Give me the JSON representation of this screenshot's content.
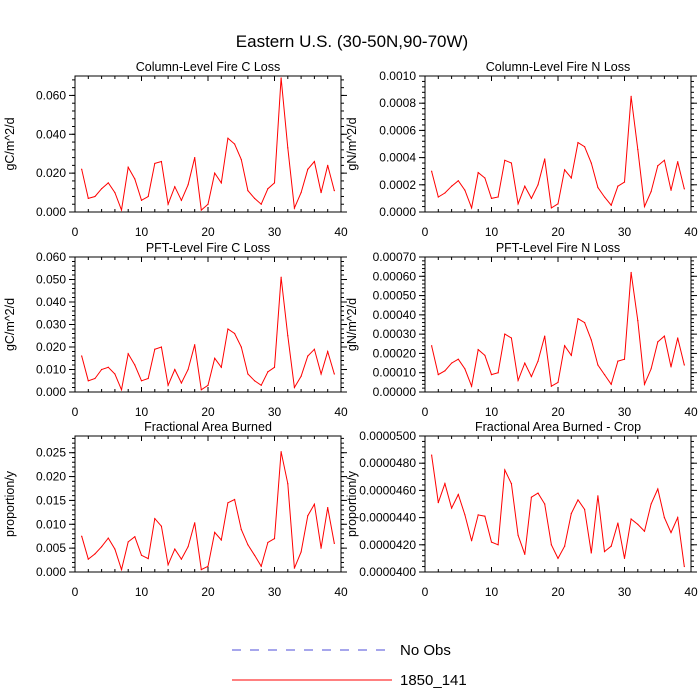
{
  "title": "Eastern U.S. (30-50N,90-70W)",
  "legend": [
    {
      "label": "No Obs",
      "color": "#4d4dd9",
      "style": "dashed"
    },
    {
      "label": "1850_141",
      "color": "#ff0000",
      "style": "solid"
    }
  ],
  "chart_data": [
    {
      "type": "line",
      "title": "Column-Level Fire C Loss",
      "xlabel": "",
      "ylabel": "gC/m^2/d",
      "xlim": [
        0,
        40
      ],
      "ylim": [
        0,
        0.07
      ],
      "xticks": [
        "0",
        "10",
        "20",
        "30",
        "40"
      ],
      "yticks": [
        {
          "value": 0,
          "label": "0.000"
        },
        {
          "value": 0.02,
          "label": "0.020"
        },
        {
          "value": 0.04,
          "label": "0.040"
        },
        {
          "value": 0.06,
          "label": "0.060"
        }
      ],
      "series": [
        {
          "name": "1850_141",
          "color": "#ff0000",
          "x": [
            1,
            2,
            3,
            4,
            5,
            6,
            7,
            8,
            9,
            10,
            11,
            12,
            13,
            14,
            15,
            16,
            17,
            18,
            19,
            20,
            21,
            22,
            23,
            24,
            25,
            26,
            27,
            28,
            29,
            30,
            31,
            32,
            33,
            34,
            35,
            36,
            37,
            38,
            39
          ],
          "values": [
            0.022,
            0.007,
            0.008,
            0.012,
            0.015,
            0.01,
            0.001,
            0.023,
            0.017,
            0.006,
            0.008,
            0.025,
            0.026,
            0.004,
            0.013,
            0.006,
            0.014,
            0.028,
            0.001,
            0.004,
            0.02,
            0.015,
            0.038,
            0.035,
            0.027,
            0.011,
            0.007,
            0.004,
            0.012,
            0.015,
            0.069,
            0.033,
            0.002,
            0.01,
            0.022,
            0.026,
            0.01,
            0.024,
            0.011
          ]
        }
      ]
    },
    {
      "type": "line",
      "title": "Column-Level Fire N Loss",
      "xlabel": "",
      "ylabel": "gN/m^2/d",
      "xlim": [
        0,
        40
      ],
      "ylim": [
        0,
        0.001
      ],
      "xticks": [
        "0",
        "10",
        "20",
        "30",
        "40"
      ],
      "yticks": [
        {
          "value": 0,
          "label": "0.0000"
        },
        {
          "value": 0.0002,
          "label": "0.0002"
        },
        {
          "value": 0.0004,
          "label": "0.0004"
        },
        {
          "value": 0.0006,
          "label": "0.0006"
        },
        {
          "value": 0.0008,
          "label": "0.0008"
        },
        {
          "value": 0.001,
          "label": "0.0010"
        }
      ],
      "series": [
        {
          "name": "1850_141",
          "color": "#ff0000",
          "x": [
            1,
            2,
            3,
            4,
            5,
            6,
            7,
            8,
            9,
            10,
            11,
            12,
            13,
            14,
            15,
            16,
            17,
            18,
            19,
            20,
            21,
            22,
            23,
            24,
            25,
            26,
            27,
            28,
            29,
            30,
            31,
            32,
            33,
            34,
            35,
            36,
            37,
            38,
            39
          ],
          "values": [
            0.0003,
            0.00011,
            0.00014,
            0.00019,
            0.00023,
            0.00016,
            3e-05,
            0.00029,
            0.00025,
            0.0001,
            0.00011,
            0.00038,
            0.00036,
            6e-05,
            0.00019,
            0.0001,
            0.0002,
            0.00039,
            3e-05,
            6e-05,
            0.00031,
            0.00025,
            0.00051,
            0.00048,
            0.00036,
            0.00018,
            0.00011,
            5e-05,
            0.00019,
            0.00022,
            0.00085,
            0.00046,
            4e-05,
            0.00015,
            0.00034,
            0.00038,
            0.00016,
            0.00037,
            0.00017
          ]
        }
      ]
    },
    {
      "type": "line",
      "title": "PFT-Level Fire C Loss",
      "xlabel": "",
      "ylabel": "gC/m^2/d",
      "xlim": [
        0,
        40
      ],
      "ylim": [
        0,
        0.06
      ],
      "xticks": [
        "0",
        "10",
        "20",
        "30",
        "40"
      ],
      "yticks": [
        {
          "value": 0,
          "label": "0.000"
        },
        {
          "value": 0.01,
          "label": "0.010"
        },
        {
          "value": 0.02,
          "label": "0.020"
        },
        {
          "value": 0.03,
          "label": "0.030"
        },
        {
          "value": 0.04,
          "label": "0.040"
        },
        {
          "value": 0.05,
          "label": "0.050"
        },
        {
          "value": 0.06,
          "label": "0.060"
        }
      ],
      "series": [
        {
          "name": "1850_141",
          "color": "#ff0000",
          "x": [
            1,
            2,
            3,
            4,
            5,
            6,
            7,
            8,
            9,
            10,
            11,
            12,
            13,
            14,
            15,
            16,
            17,
            18,
            19,
            20,
            21,
            22,
            23,
            24,
            25,
            26,
            27,
            28,
            29,
            30,
            31,
            32,
            33,
            34,
            35,
            36,
            37,
            38,
            39
          ],
          "values": [
            0.016,
            0.005,
            0.006,
            0.01,
            0.011,
            0.008,
            0.001,
            0.017,
            0.012,
            0.005,
            0.006,
            0.019,
            0.02,
            0.003,
            0.01,
            0.004,
            0.01,
            0.021,
            0.001,
            0.003,
            0.015,
            0.011,
            0.028,
            0.026,
            0.02,
            0.008,
            0.005,
            0.003,
            0.009,
            0.011,
            0.051,
            0.025,
            0.002,
            0.007,
            0.016,
            0.019,
            0.008,
            0.018,
            0.008
          ]
        }
      ]
    },
    {
      "type": "line",
      "title": "PFT-Level Fire N Loss",
      "xlabel": "",
      "ylabel": "gN/m^2/d",
      "xlim": [
        0,
        40
      ],
      "ylim": [
        0,
        0.0007
      ],
      "xticks": [
        "0",
        "10",
        "20",
        "30",
        "40"
      ],
      "yticks": [
        {
          "value": 0,
          "label": "0.00000"
        },
        {
          "value": 0.0001,
          "label": "0.00010"
        },
        {
          "value": 0.0002,
          "label": "0.00020"
        },
        {
          "value": 0.0003,
          "label": "0.00030"
        },
        {
          "value": 0.0004,
          "label": "0.00040"
        },
        {
          "value": 0.0005,
          "label": "0.00050"
        },
        {
          "value": 0.0006,
          "label": "0.00060"
        },
        {
          "value": 0.0007,
          "label": "0.00070"
        }
      ],
      "series": [
        {
          "name": "1850_141",
          "color": "#ff0000",
          "x": [
            1,
            2,
            3,
            4,
            5,
            6,
            7,
            8,
            9,
            10,
            11,
            12,
            13,
            14,
            15,
            16,
            17,
            18,
            19,
            20,
            21,
            22,
            23,
            24,
            25,
            26,
            27,
            28,
            29,
            30,
            31,
            32,
            33,
            34,
            35,
            36,
            37,
            38,
            39
          ],
          "values": [
            0.00024,
            9e-05,
            0.00011,
            0.00015,
            0.00017,
            0.00012,
            3e-05,
            0.00022,
            0.00019,
            9e-05,
            0.0001,
            0.0003,
            0.00028,
            6e-05,
            0.00015,
            8e-05,
            0.00016,
            0.00029,
            3e-05,
            5e-05,
            0.00024,
            0.00019,
            0.00038,
            0.00036,
            0.00027,
            0.00014,
            9e-05,
            4e-05,
            0.00016,
            0.00017,
            0.00062,
            0.00037,
            4e-05,
            0.00012,
            0.00026,
            0.00029,
            0.00013,
            0.00028,
            0.00014
          ]
        }
      ]
    },
    {
      "type": "line",
      "title": "Fractional Area Burned",
      "xlabel": "",
      "ylabel": "proportion/y",
      "xlim": [
        0,
        40
      ],
      "ylim": [
        0,
        0.0285
      ],
      "xticks": [
        "0",
        "10",
        "20",
        "30",
        "40"
      ],
      "yticks": [
        {
          "value": 0,
          "label": "0.000"
        },
        {
          "value": 0.005,
          "label": "0.005"
        },
        {
          "value": 0.01,
          "label": "0.010"
        },
        {
          "value": 0.015,
          "label": "0.015"
        },
        {
          "value": 0.02,
          "label": "0.020"
        },
        {
          "value": 0.025,
          "label": "0.025"
        }
      ],
      "series": [
        {
          "name": "1850_141",
          "color": "#ff0000",
          "x": [
            1,
            2,
            3,
            4,
            5,
            6,
            7,
            8,
            9,
            10,
            11,
            12,
            13,
            14,
            15,
            16,
            17,
            18,
            19,
            20,
            21,
            22,
            23,
            24,
            25,
            26,
            27,
            28,
            29,
            30,
            31,
            32,
            33,
            34,
            35,
            36,
            37,
            38,
            39
          ],
          "values": [
            0.0075,
            0.0027,
            0.0038,
            0.0053,
            0.0071,
            0.0048,
            0.0005,
            0.0063,
            0.0074,
            0.0035,
            0.0028,
            0.0112,
            0.0096,
            0.0015,
            0.0048,
            0.0027,
            0.0053,
            0.0103,
            0.0005,
            0.0012,
            0.0083,
            0.0067,
            0.0145,
            0.0152,
            0.0089,
            0.0057,
            0.0035,
            0.0012,
            0.0062,
            0.007,
            0.0252,
            0.0185,
            0.0008,
            0.0042,
            0.0118,
            0.0142,
            0.005,
            0.0135,
            0.006
          ]
        }
      ]
    },
    {
      "type": "line",
      "title": "Fractional Area Burned - Crop",
      "xlabel": "",
      "ylabel": "proportion/y",
      "xlim": [
        0,
        40
      ],
      "ylim": [
        4e-05,
        5e-05
      ],
      "xticks": [
        "0",
        "10",
        "20",
        "30",
        "40"
      ],
      "yticks": [
        {
          "value": 4e-05,
          "label": "0.0000400"
        },
        {
          "value": 4.2e-05,
          "label": "0.0000420"
        },
        {
          "value": 4.4e-05,
          "label": "0.0000440"
        },
        {
          "value": 4.6e-05,
          "label": "0.0000460"
        },
        {
          "value": 4.8e-05,
          "label": "0.0000480"
        },
        {
          "value": 5e-05,
          "label": "0.0000500"
        }
      ],
      "series": [
        {
          "name": "1850_141",
          "color": "#ff0000",
          "x": [
            1,
            2,
            3,
            4,
            5,
            6,
            7,
            8,
            9,
            10,
            11,
            12,
            13,
            14,
            15,
            16,
            17,
            18,
            19,
            20,
            21,
            22,
            23,
            24,
            25,
            26,
            27,
            28,
            29,
            30,
            31,
            32,
            33,
            34,
            35,
            36,
            37,
            38,
            39
          ],
          "values": [
            4.86e-05,
            4.51e-05,
            4.65e-05,
            4.47e-05,
            4.57e-05,
            4.42e-05,
            4.23e-05,
            4.42e-05,
            4.41e-05,
            4.22e-05,
            4.2e-05,
            4.75e-05,
            4.65e-05,
            4.27e-05,
            4.13e-05,
            4.55e-05,
            4.58e-05,
            4.5e-05,
            4.2e-05,
            4.1e-05,
            4.19e-05,
            4.43e-05,
            4.53e-05,
            4.46e-05,
            4.14e-05,
            4.56e-05,
            4.15e-05,
            4.19e-05,
            4.36e-05,
            4.1e-05,
            4.39e-05,
            4.35e-05,
            4.3e-05,
            4.5e-05,
            4.61e-05,
            4.4e-05,
            4.29e-05,
            4.4e-05,
            4.04e-05
          ]
        }
      ]
    }
  ]
}
